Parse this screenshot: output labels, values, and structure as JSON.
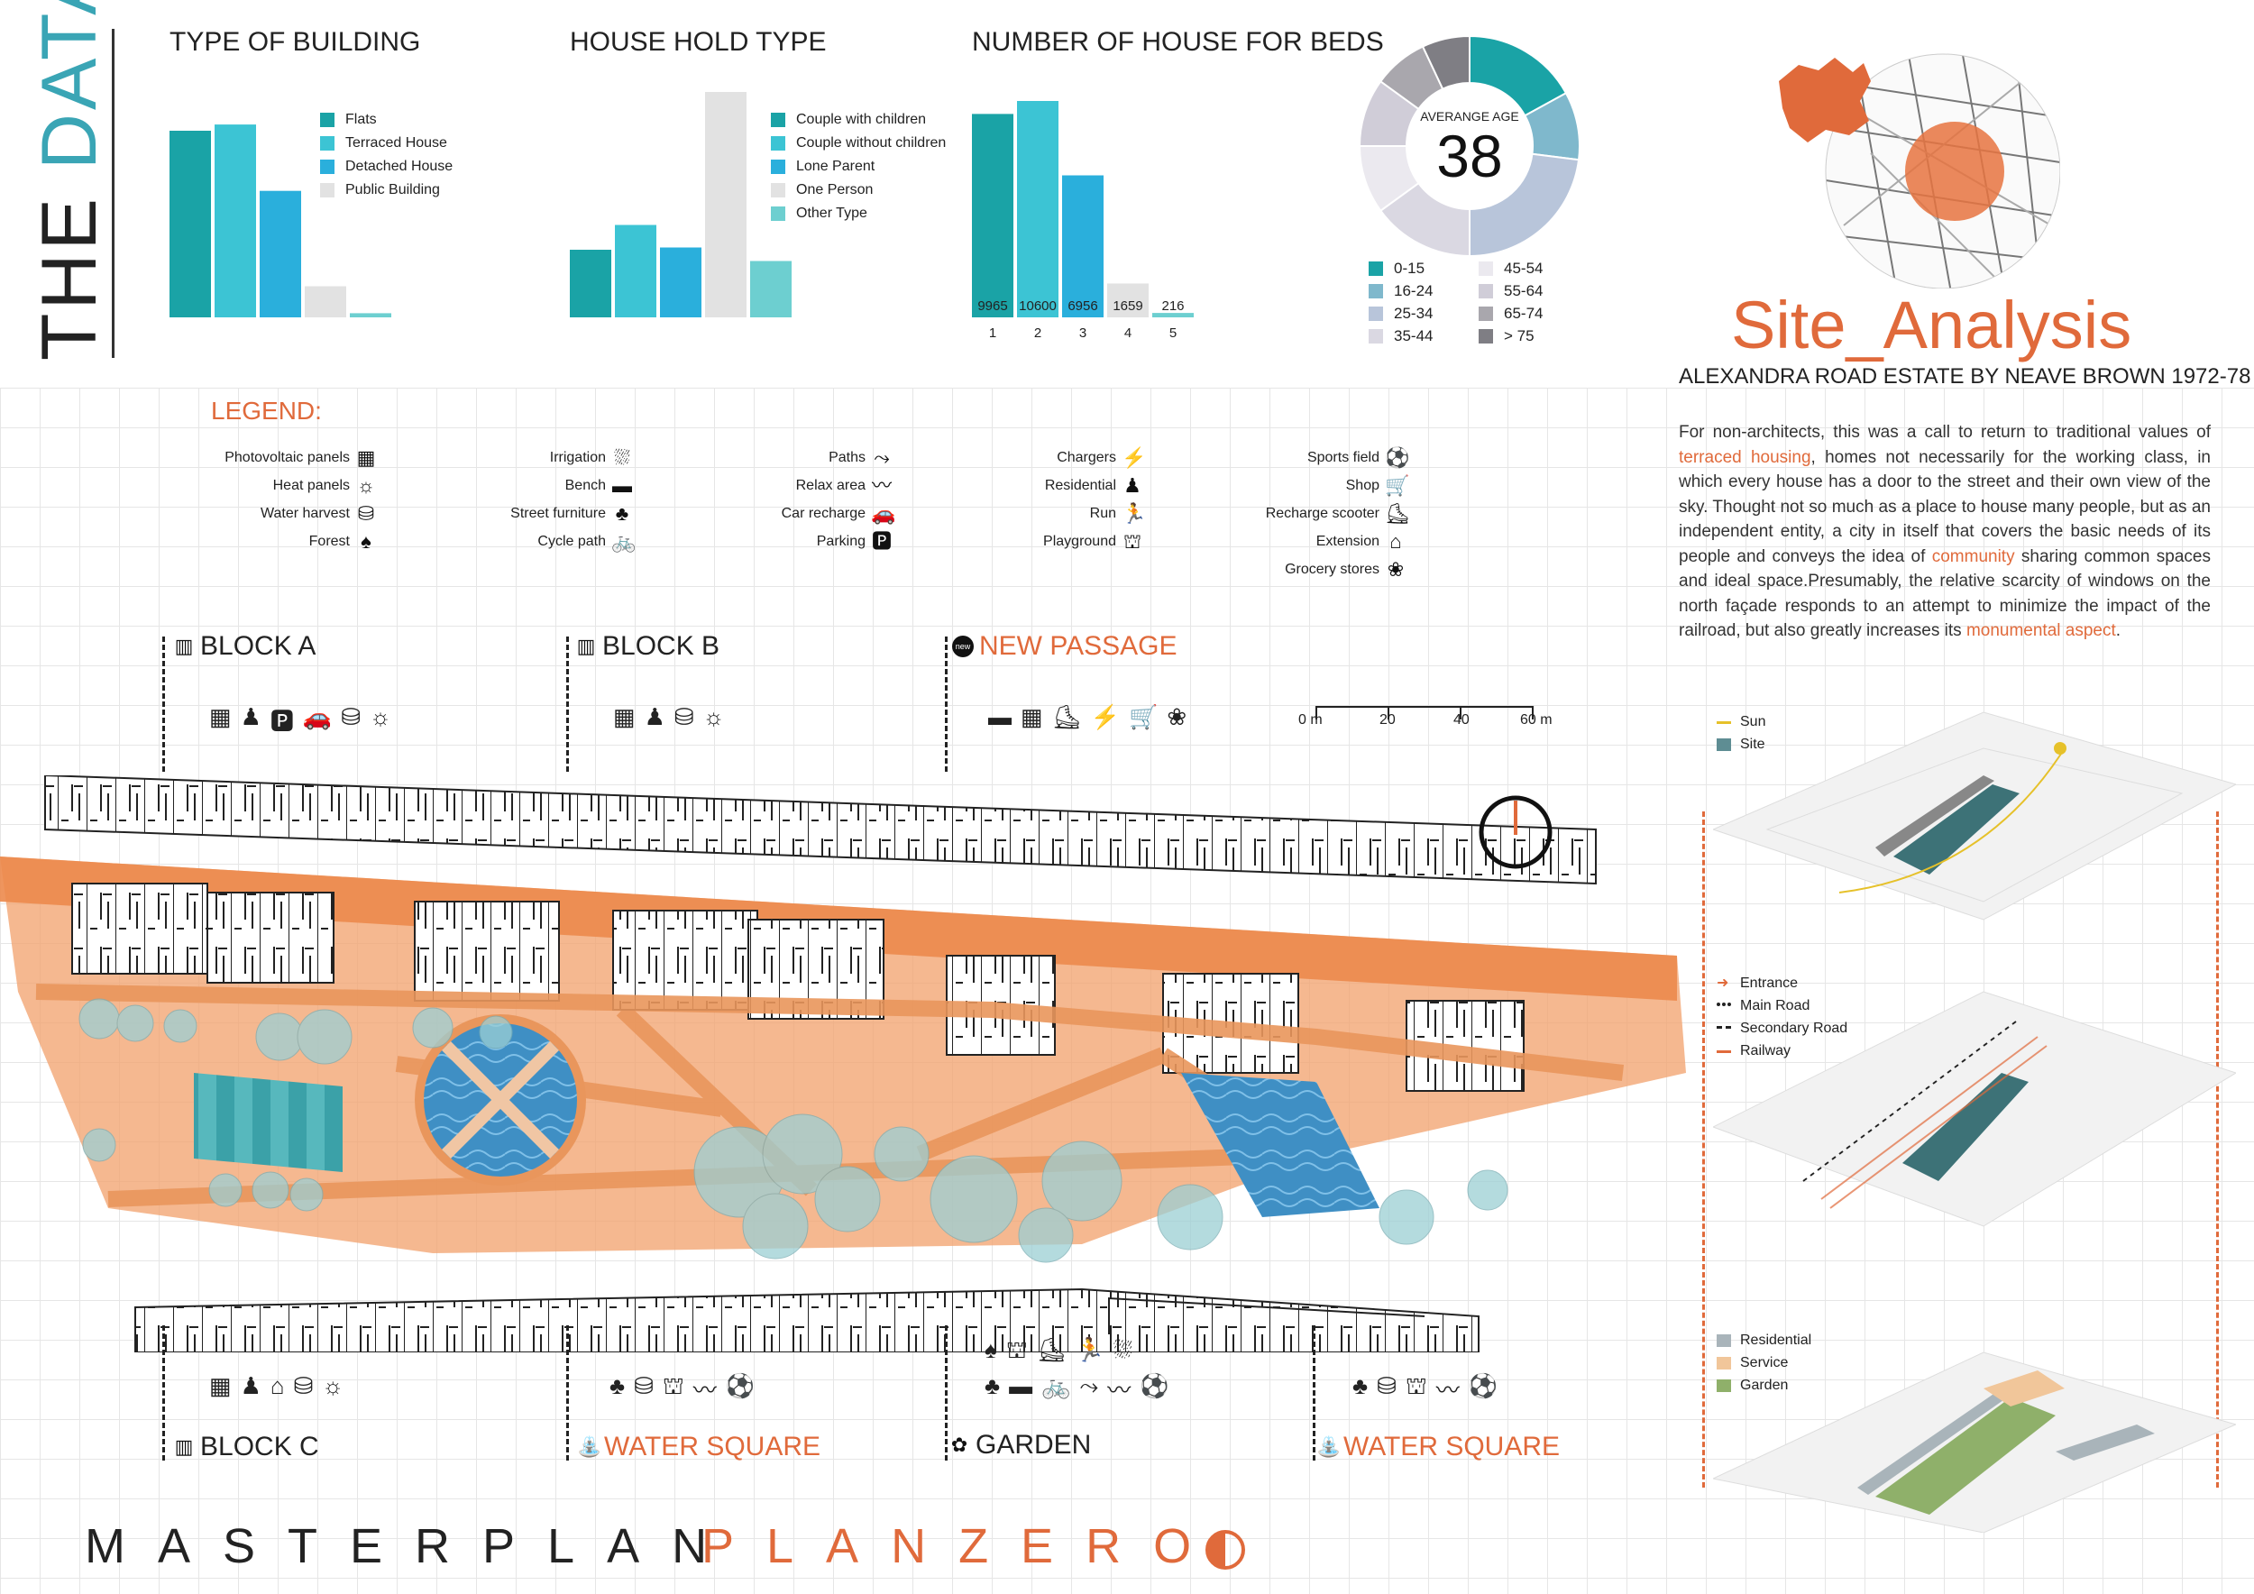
{
  "header": {
    "title_a": "THE ",
    "title_b": "DATA"
  },
  "chart_data": [
    {
      "type": "bar",
      "title": "TYPE OF BUILDING",
      "categories": [
        "Flats",
        "Terraced House",
        "Detached House",
        "Public Building"
      ],
      "values": [
        9000,
        9300,
        6100,
        1500
      ],
      "colors": [
        "#1aa3a6",
        "#3cc4d4",
        "#2aafdc",
        "#e2e2e2"
      ],
      "extra": {
        "label": "",
        "value": 200,
        "color": "#6dcfd0"
      },
      "legend": "right"
    },
    {
      "type": "bar",
      "title": "HOUSE HOLD TYPE",
      "categories": [
        "Couple with children",
        "Couple without children",
        "Lone Parent",
        "One Person",
        "Other Type"
      ],
      "values": [
        3000,
        4100,
        3100,
        10000,
        2500
      ],
      "colors": [
        "#1aa3a6",
        "#3cc4d4",
        "#2aafdc",
        "#e2e2e2",
        "#6dcfd0"
      ],
      "legend": "right"
    },
    {
      "type": "bar",
      "title": "NUMBER OF HOUSE FOR BEDS",
      "categories": [
        "1",
        "2",
        "3",
        "4",
        "5"
      ],
      "values": [
        9965,
        10600,
        6956,
        1659,
        216
      ],
      "value_labels": [
        "9965",
        "10600",
        "6956",
        "1659",
        "216"
      ],
      "colors": [
        "#1aa3a6",
        "#3cc4d4",
        "#2aafdc",
        "#e2e2e2",
        "#6dcfd0"
      ]
    },
    {
      "type": "pie",
      "center_label": "AVERANGE AGE",
      "center_value": "38",
      "categories": [
        "0-15",
        "16-24",
        "25-34",
        "35-44",
        "45-54",
        "55-64",
        "65-74",
        "> 75"
      ],
      "values": [
        17,
        10,
        23,
        15,
        10,
        10,
        8,
        7
      ],
      "colors": [
        "#1aa3a6",
        "#7fb8cc",
        "#b8c5da",
        "#dad8e2",
        "#ebe9ef",
        "#d0cdd8",
        "#a9a7ad",
        "#7f7e84"
      ]
    }
  ],
  "site": {
    "title": "Site_Analysis",
    "subtitle": "ALEXANDRA ROAD ESTATE BY NEAVE BROWN 1972-78",
    "p1": "For non-architects, this was a call to return to traditional values of ",
    "hl1": "terraced housing",
    "p2": ", homes not necessarily for the working class, in which every house has a door to the street and their own view of the sky. Thought not so much as a place to house many people, but as an independent entity, a city in itself that covers the basic needs of its people and conveys the idea of ",
    "hl2": "community",
    "p3": " sharing common spaces and ideal space.Presumably, the relative scarcity of windows on the north façade responds to an attempt to minimize the impact of the railroad, but also greatly increases its ",
    "hl3": "monumental aspect",
    "p4": "."
  },
  "legend": {
    "title": "LEGEND:",
    "col1": [
      "Photovoltaic panels",
      "Heat panels",
      "Water harvest",
      "Forest"
    ],
    "col2": [
      "Irrigation",
      "Bench",
      "Street furniture",
      "Cycle path"
    ],
    "col3": [
      "Paths",
      "Relax area",
      "Car recharge",
      "Parking"
    ],
    "col4": [
      "Chargers",
      "Residential",
      "Run",
      "Playground"
    ],
    "col5": [
      "Sports field",
      "Shop",
      "Recharge scooter",
      "Extension",
      "Grocery stores"
    ]
  },
  "plan": {
    "block_a": "BLOCK A",
    "block_b": "BLOCK B",
    "new_passage": "NEW PASSAGE",
    "new_badge": "new",
    "block_c": "BLOCK C",
    "water_square_1": "WATER SQUARE",
    "garden": "GARDEN",
    "water_square_2": "WATER SQUARE",
    "scale": [
      "0 m",
      "20",
      "40",
      "60 m"
    ]
  },
  "axo": {
    "l1": [
      "Sun",
      "Site"
    ],
    "l2": [
      "Entrance",
      "Main Road",
      "Secondary Road",
      "Railway"
    ],
    "l3": [
      "Residential",
      "Service",
      "Garden"
    ]
  },
  "footer": {
    "masterplan": "MASTERPLAN",
    "planzero": "PLANZERO"
  }
}
